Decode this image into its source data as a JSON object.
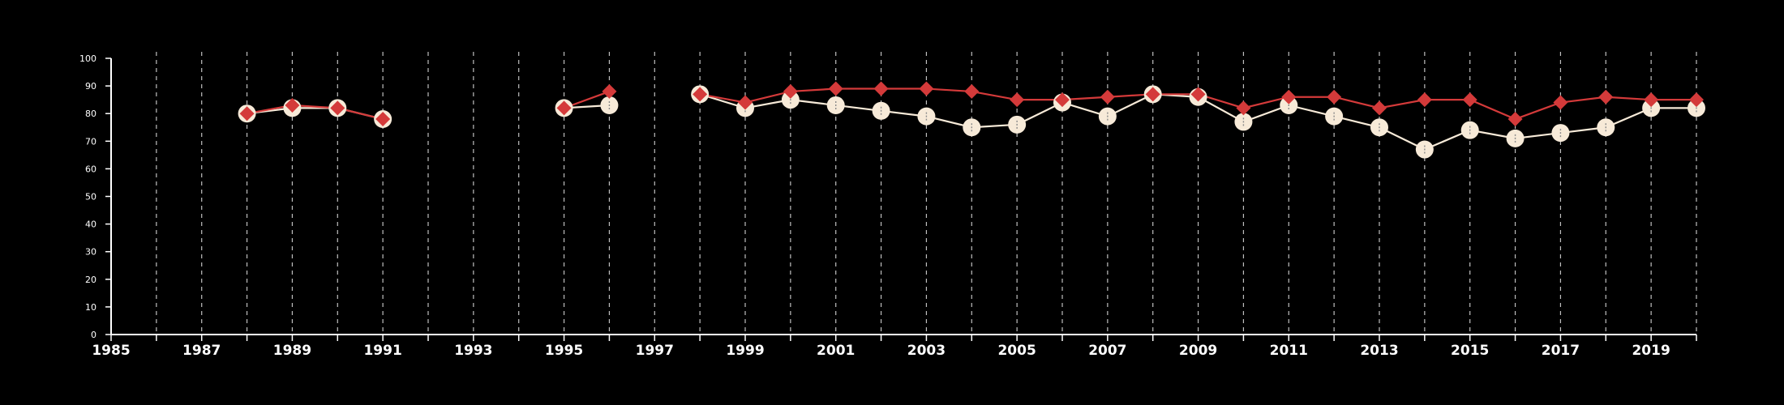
{
  "colors": {
    "background": "#000000",
    "axis": "#ffffff",
    "grid": "#bfbfbf",
    "series_a": "#d43a3a",
    "series_b": "#f7ead8",
    "series_b_center": "#8a8a8a"
  },
  "chart_data": {
    "type": "line",
    "title": "",
    "xlabel": "",
    "ylabel": "",
    "xlim": [
      1985,
      2020
    ],
    "ylim": [
      0,
      100
    ],
    "y_ticks": [
      0,
      10,
      20,
      30,
      40,
      50,
      60,
      70,
      80,
      90,
      100
    ],
    "x_tick_labels": [
      1985,
      1987,
      1989,
      1991,
      1993,
      1995,
      1997,
      1999,
      2001,
      2003,
      2005,
      2007,
      2009,
      2011,
      2013,
      2015,
      2017,
      2019
    ],
    "grid": "vertical dashed lines at every year",
    "x": [
      1988,
      1989,
      1990,
      1991,
      1995,
      1996,
      1998,
      1999,
      2000,
      2001,
      2002,
      2003,
      2004,
      2005,
      2006,
      2007,
      2008,
      2009,
      2010,
      2011,
      2012,
      2013,
      2014,
      2015,
      2016,
      2017,
      2018,
      2019,
      2020
    ],
    "series": [
      {
        "marker": "diamond",
        "color": "#d43a3a",
        "values": [
          80,
          83,
          82,
          78,
          82,
          88,
          87,
          84,
          88,
          89,
          89,
          89,
          88,
          85,
          85,
          86,
          87,
          87,
          82,
          86,
          86,
          82,
          85,
          85,
          78,
          84,
          86,
          85,
          85
        ]
      },
      {
        "marker": "circle",
        "color": "#f7ead8",
        "values": [
          80,
          82,
          82,
          78,
          82,
          83,
          87,
          82,
          85,
          83,
          81,
          79,
          75,
          76,
          84,
          79,
          87,
          86,
          77,
          83,
          79,
          75,
          67,
          74,
          71,
          73,
          75,
          82,
          82
        ]
      }
    ]
  }
}
